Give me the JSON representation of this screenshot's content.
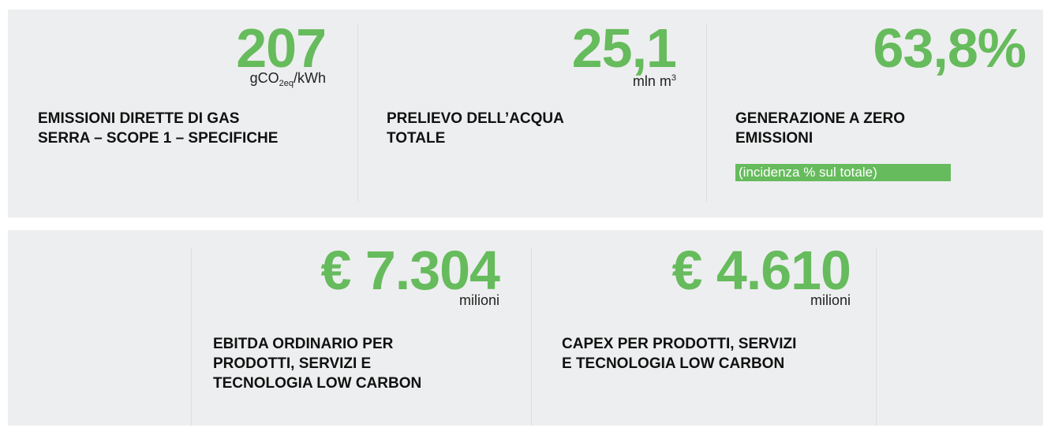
{
  "kpis": [
    {
      "value": "207",
      "unit": [
        {
          "text": "gCO"
        },
        {
          "sub": "2eq"
        },
        {
          "text": "/kWh"
        }
      ],
      "label": [
        "EMISSIONI DIRETTE DI GAS",
        "SERRA – SCOPE 1 – SPECIFICHE"
      ]
    },
    {
      "value": "25,1",
      "unit": [
        {
          "text": "mln m"
        },
        {
          "sup": "3"
        }
      ],
      "label": [
        "PRELIEVO DELL’ACQUA",
        "TOTALE"
      ]
    },
    {
      "value": "63,8%",
      "label": [
        "GENERAZIONE A ZERO",
        "EMISSIONI"
      ],
      "note": "(incidenza % sul totale)"
    },
    {
      "value": "€ 7.304",
      "unit": [
        {
          "text": "milioni"
        }
      ],
      "label": [
        "EBITDA ORDINARIO PER",
        "PRODOTTI, SERVIZI E",
        "TECNOLOGIA LOW CARBON"
      ]
    },
    {
      "value": "€ 4.610",
      "unit": [
        {
          "text": "milioni"
        }
      ],
      "label": [
        "CAPEX PER PRODOTTI, SERVIZI",
        "E TECNOLOGIA LOW CARBON"
      ]
    }
  ]
}
